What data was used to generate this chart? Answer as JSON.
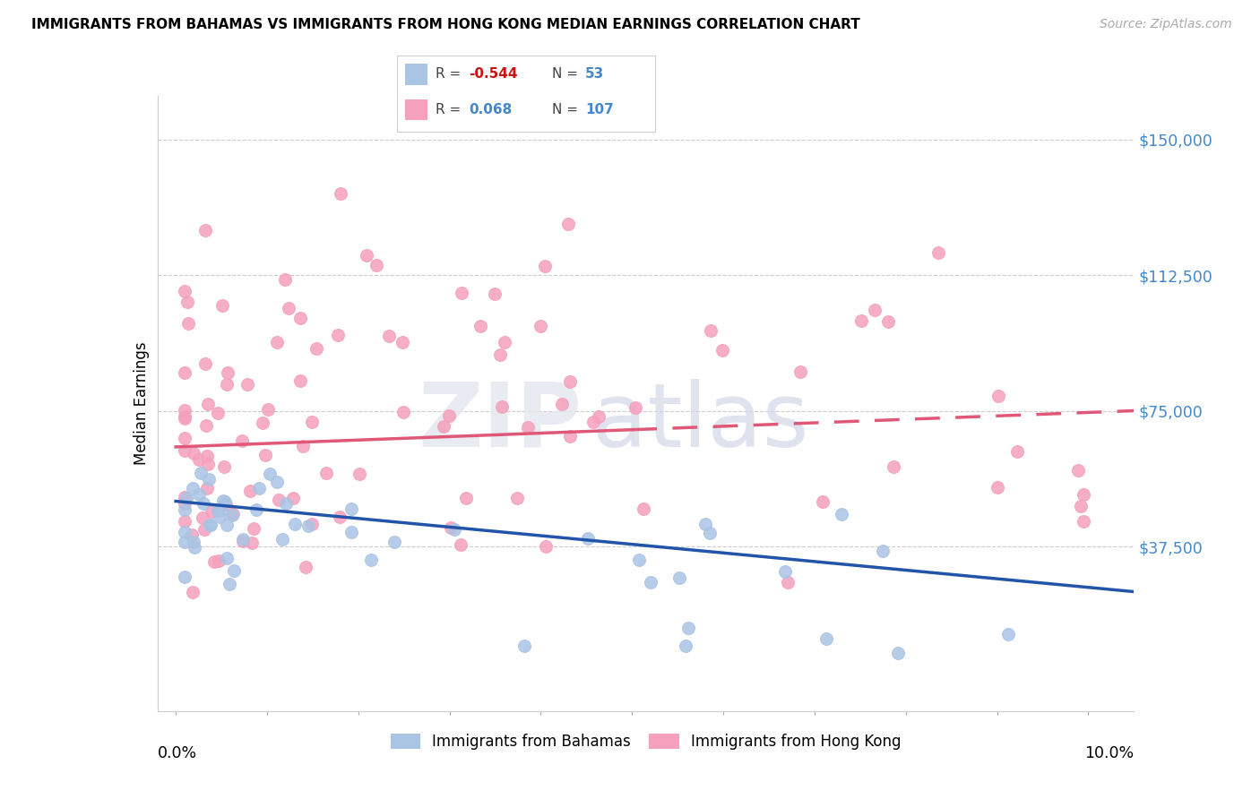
{
  "title": "IMMIGRANTS FROM BAHAMAS VS IMMIGRANTS FROM HONG KONG MEDIAN EARNINGS CORRELATION CHART",
  "source": "Source: ZipAtlas.com",
  "ylabel": "Median Earnings",
  "bahamas_R": -0.544,
  "bahamas_N": 53,
  "hongkong_R": 0.068,
  "hongkong_N": 107,
  "bahamas_scatter_color": "#aac4e4",
  "bahamas_line_color": "#2255aa",
  "hongkong_scatter_color": "#f5a0bc",
  "hongkong_line_color": "#e05878",
  "yaxis_color": "#4488cc",
  "ytick_vals": [
    0,
    37500,
    75000,
    112500,
    150000
  ],
  "ytick_labels": [
    "",
    "$37,500",
    "$75,000",
    "$112,500",
    "$150,000"
  ],
  "xlim": [
    -0.002,
    0.105
  ],
  "ylim": [
    -8000,
    162000
  ],
  "grid_color": "#cccccc",
  "bahamas_trend": [
    50000,
    25000
  ],
  "hongkong_trend": [
    65000,
    75000
  ],
  "title_fontsize": 11,
  "source_fontsize": 10,
  "tick_label_fontsize": 12.5,
  "ylabel_fontsize": 12,
  "scatter_size": 100,
  "scatter_alpha": 0.85,
  "legend_R_neg_color": "#cc1111",
  "legend_R_pos_color": "#4488cc",
  "legend_N_color": "#4488cc"
}
